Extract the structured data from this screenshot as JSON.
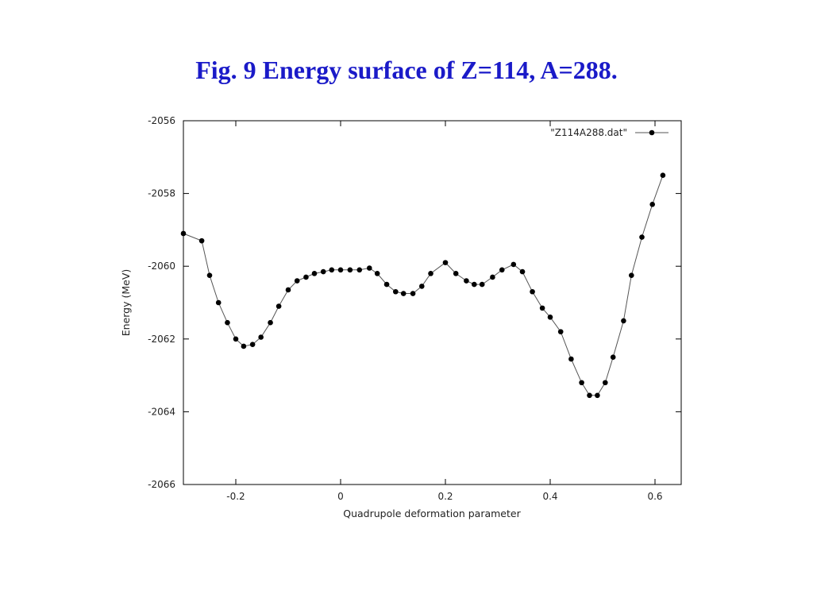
{
  "slide": {
    "title": "Fig. 9  Energy surface of Z=114, A=288."
  },
  "chart_data": {
    "type": "line",
    "title": "",
    "xlabel": "Quadrupole deformation parameter",
    "ylabel": "Energy (MeV)",
    "xlim": [
      -0.3,
      0.65
    ],
    "ylim": [
      -2066,
      -2056
    ],
    "xticks": [
      -0.2,
      0,
      0.2,
      0.4,
      0.6
    ],
    "xtick_labels": [
      "-0.2",
      "0",
      "0.2",
      "0.4",
      "0.6"
    ],
    "yticks": [
      -2066,
      -2064,
      -2062,
      -2060,
      -2058,
      -2056
    ],
    "ytick_labels": [
      "-2066",
      "-2064",
      "-2062",
      "-2060",
      "-2058",
      "-2056"
    ],
    "grid": false,
    "legend_position": "top-right",
    "series": [
      {
        "name": "\"Z114A288.dat\"",
        "color": "#000000",
        "marker": "filled-circle",
        "x": [
          -0.3,
          -0.265,
          -0.25,
          -0.233,
          -0.216,
          -0.2,
          -0.185,
          -0.168,
          -0.152,
          -0.134,
          -0.118,
          -0.1,
          -0.083,
          -0.066,
          -0.05,
          -0.033,
          -0.017,
          0.0,
          0.018,
          0.036,
          0.055,
          0.07,
          0.088,
          0.105,
          0.12,
          0.138,
          0.155,
          0.172,
          0.2,
          0.22,
          0.24,
          0.255,
          0.27,
          0.29,
          0.308,
          0.33,
          0.347,
          0.366,
          0.385,
          0.4,
          0.42,
          0.44,
          0.46,
          0.475,
          0.49,
          0.505,
          0.52,
          0.54,
          0.555,
          0.575,
          0.595,
          0.615
        ],
        "y": [
          -2059.1,
          -2059.3,
          -2060.25,
          -2061.0,
          -2061.55,
          -2062.0,
          -2062.2,
          -2062.15,
          -2061.95,
          -2061.55,
          -2061.1,
          -2060.65,
          -2060.4,
          -2060.3,
          -2060.2,
          -2060.15,
          -2060.1,
          -2060.1,
          -2060.1,
          -2060.1,
          -2060.05,
          -2060.2,
          -2060.5,
          -2060.7,
          -2060.75,
          -2060.75,
          -2060.55,
          -2060.2,
          -2059.9,
          -2060.2,
          -2060.4,
          -2060.5,
          -2060.5,
          -2060.3,
          -2060.1,
          -2059.95,
          -2060.15,
          -2060.7,
          -2061.15,
          -2061.4,
          -2061.8,
          -2062.55,
          -2063.2,
          -2063.55,
          -2063.55,
          -2063.2,
          -2062.5,
          -2061.5,
          -2060.25,
          -2059.2,
          -2058.3,
          -2057.5
        ]
      }
    ]
  }
}
